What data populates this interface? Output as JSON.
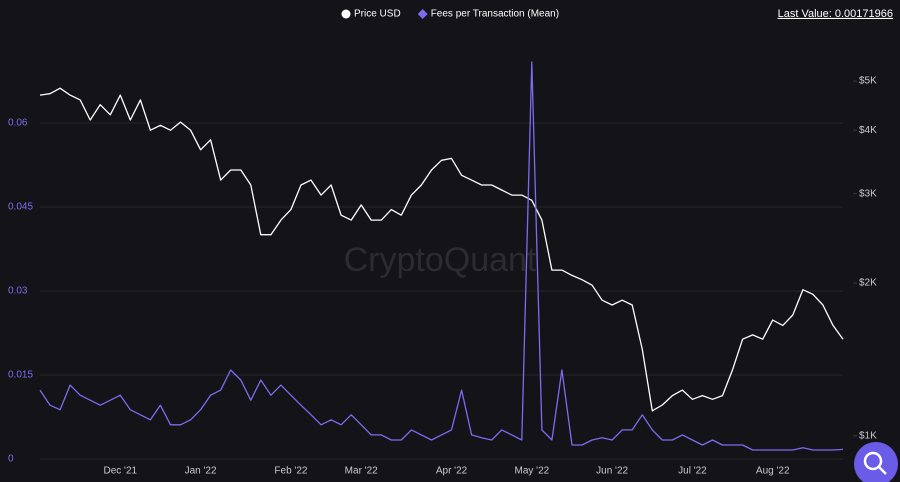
{
  "chart_data": {
    "type": "line",
    "watermark": "CryptoQuant",
    "annotation": "Last Value: 0.00171966",
    "categories": [
      null,
      null,
      null,
      null,
      null,
      null,
      null,
      null,
      "Dec '21",
      null,
      null,
      null,
      null,
      null,
      null,
      null,
      "Jan '22",
      null,
      null,
      null,
      null,
      null,
      null,
      null,
      null,
      "Feb '22",
      null,
      null,
      null,
      null,
      null,
      null,
      "Mar '22",
      null,
      null,
      null,
      null,
      null,
      null,
      null,
      null,
      "Apr '22",
      null,
      null,
      null,
      null,
      null,
      null,
      null,
      "May '22",
      null,
      null,
      null,
      null,
      null,
      null,
      null,
      "Jun '22",
      null,
      null,
      null,
      null,
      null,
      null,
      null,
      "Jul '22",
      null,
      null,
      null,
      null,
      null,
      null,
      null,
      "Aug '22",
      null,
      null,
      null,
      null,
      null,
      null,
      null
    ],
    "series": [
      {
        "name": "Price USD",
        "color": "#ffffff",
        "axis": "y2",
        "marker": "circle",
        "values": [
          4690,
          4720,
          4840,
          4690,
          4590,
          4190,
          4490,
          4290,
          4690,
          4190,
          4590,
          4000,
          4090,
          4000,
          4150,
          4000,
          3660,
          3830,
          3190,
          3340,
          3340,
          3120,
          2490,
          2490,
          2660,
          2790,
          3120,
          3190,
          2980,
          3120,
          2720,
          2660,
          2850,
          2660,
          2660,
          2790,
          2720,
          2980,
          3120,
          3340,
          3490,
          3520,
          3260,
          3190,
          3120,
          3120,
          3050,
          2980,
          2980,
          2910,
          2660,
          2120,
          2120,
          2070,
          2030,
          1980,
          1850,
          1810,
          1850,
          1810,
          1480,
          1120,
          1150,
          1200,
          1230,
          1180,
          1200,
          1180,
          1200,
          1350,
          1550,
          1580,
          1550,
          1690,
          1650,
          1730,
          1940,
          1900,
          1810,
          1650,
          1550
        ]
      },
      {
        "name": "Fees per Transaction (Mean)",
        "color": "#7b6cf2",
        "axis": "y",
        "marker": "diamond",
        "values": [
          0.0123,
          0.0096,
          0.0088,
          0.0132,
          0.0114,
          0.0105,
          0.0096,
          0.0105,
          0.0114,
          0.0088,
          0.0079,
          0.007,
          0.0096,
          0.0061,
          0.0061,
          0.007,
          0.0088,
          0.0114,
          0.0123,
          0.0159,
          0.0141,
          0.0105,
          0.0141,
          0.0114,
          0.0132,
          0.0114,
          0.0096,
          0.0079,
          0.0061,
          0.007,
          0.0061,
          0.0079,
          0.0061,
          0.0043,
          0.0043,
          0.0034,
          0.0034,
          0.0052,
          0.0043,
          0.0034,
          0.0043,
          0.0052,
          0.0123,
          0.0043,
          0.0038,
          0.0034,
          0.0052,
          0.0043,
          0.0034,
          0.0709,
          0.0052,
          0.0034,
          0.0159,
          0.0025,
          0.0025,
          0.0034,
          0.0038,
          0.0034,
          0.0052,
          0.0052,
          0.0079,
          0.0052,
          0.0034,
          0.0034,
          0.0043,
          0.0034,
          0.0025,
          0.0034,
          0.0025,
          0.0025,
          0.0025,
          0.0016,
          0.0016,
          0.0016,
          0.0016,
          0.0016,
          0.002,
          0.0016,
          0.0016,
          0.0016,
          0.00171966
        ]
      }
    ],
    "ylim": [
      0,
      0.075
    ],
    "yticks": [
      0,
      0.015,
      0.03,
      0.045,
      0.06
    ],
    "y2lim": [
      900,
      6050
    ],
    "y2log": true,
    "y2ticks": [
      {
        "value": 1000,
        "label": "$1K"
      },
      {
        "value": 2000,
        "label": "$2K"
      },
      {
        "value": 3000,
        "label": "$3K"
      },
      {
        "value": 4000,
        "label": "$4K"
      },
      {
        "value": 5000,
        "label": "$5K"
      }
    ],
    "grid": true
  }
}
